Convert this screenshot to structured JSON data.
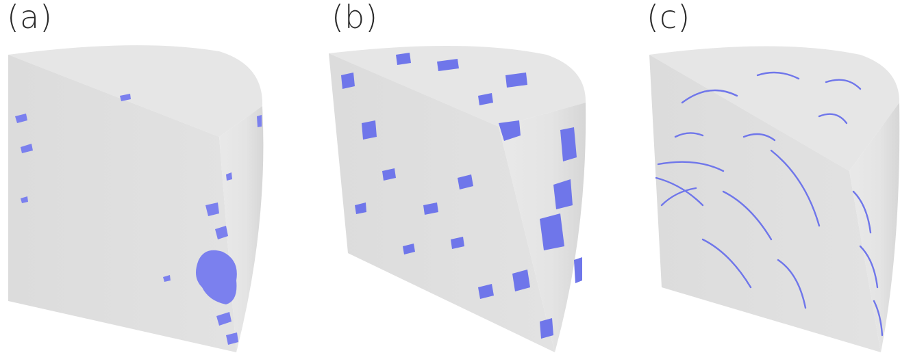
{
  "figure": {
    "panels": [
      {
        "label": "(a)",
        "pore_density": "sparse",
        "description_color": "#8a8ff0"
      },
      {
        "label": "(b)",
        "pore_density": "dense",
        "description_color": "#6f76ea"
      },
      {
        "label": "(c)",
        "pore_density": "fibrous",
        "description_color": "#6f76ea"
      }
    ]
  },
  "colors": {
    "solid_top": "#e3e3e3",
    "solid_front": "#d9d9d9",
    "solid_curve": "#e6e6e6",
    "pore": "#7b80ee"
  }
}
